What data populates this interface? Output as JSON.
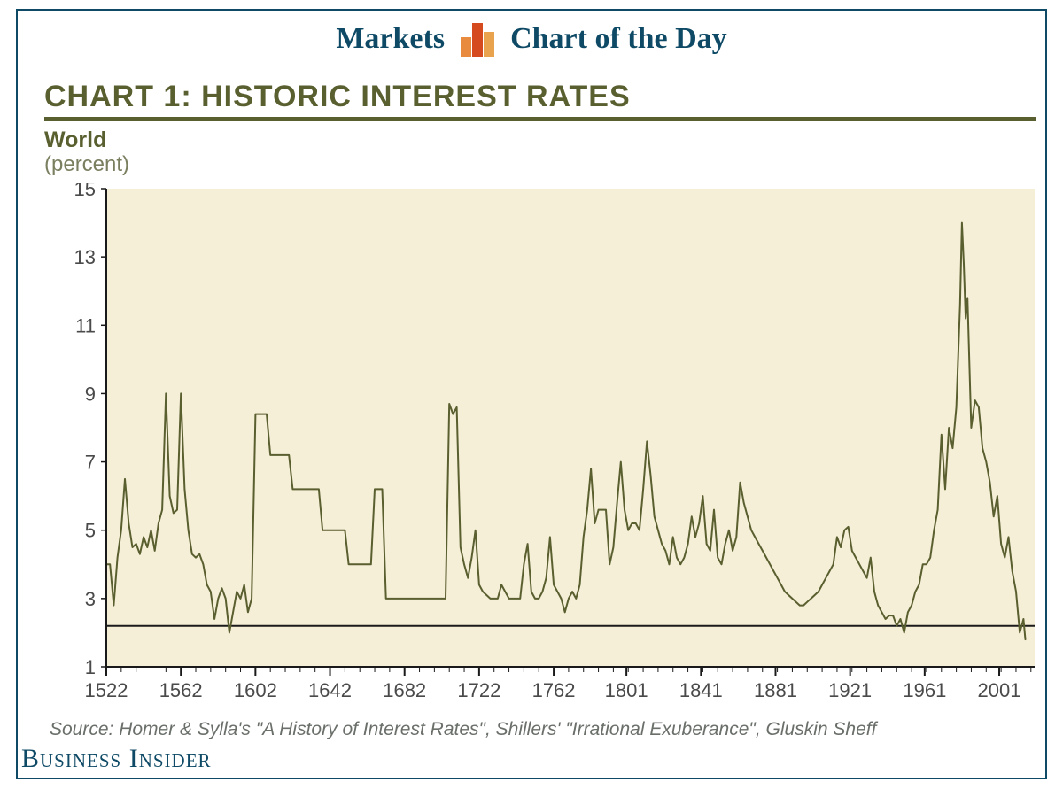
{
  "header": {
    "markets": "Markets",
    "cod": "Chart of the Day",
    "rule_color": "#e46f3a",
    "text_color": "#0e4a66",
    "icon_colors": [
      "#e88b3f",
      "#d64a1f",
      "#e9a24d"
    ]
  },
  "chart": {
    "type": "line",
    "title": "CHART 1: HISTORIC INTEREST RATES",
    "title_color": "#5a5f2f",
    "title_fontsize": 34,
    "subtitle1": "World",
    "subtitle2": "(percent)",
    "subtitle_color": "#5a5f2f",
    "subtitle2_color": "#7a7f60",
    "plot": {
      "bg_color": "#f6efd8",
      "axis_color": "#1a1a1a",
      "line_color": "#5a5f2f",
      "line_width": 2,
      "ref_line_y": 2.2,
      "ref_line_color": "#1a1a1a",
      "ref_line_width": 2,
      "xlim": [
        1522,
        2020
      ],
      "ylim": [
        1,
        15
      ],
      "yticks": [
        1,
        3,
        5,
        7,
        9,
        11,
        13,
        15
      ],
      "xticks": [
        1522,
        1562,
        1602,
        1642,
        1682,
        1722,
        1762,
        1801,
        1841,
        1881,
        1921,
        1961,
        2001
      ],
      "tick_fontsize": 22,
      "tick_color": "#4a4a4a",
      "minor_xtick_step": 8,
      "series": [
        [
          1522,
          4.0
        ],
        [
          1524,
          4.0
        ],
        [
          1526,
          2.8
        ],
        [
          1528,
          4.2
        ],
        [
          1530,
          5.0
        ],
        [
          1532,
          6.5
        ],
        [
          1534,
          5.2
        ],
        [
          1536,
          4.5
        ],
        [
          1538,
          4.6
        ],
        [
          1540,
          4.3
        ],
        [
          1542,
          4.8
        ],
        [
          1544,
          4.5
        ],
        [
          1546,
          5.0
        ],
        [
          1548,
          4.4
        ],
        [
          1550,
          5.2
        ],
        [
          1552,
          5.6
        ],
        [
          1554,
          9.0
        ],
        [
          1556,
          6.0
        ],
        [
          1558,
          5.5
        ],
        [
          1560,
          5.6
        ],
        [
          1562,
          9.0
        ],
        [
          1564,
          6.2
        ],
        [
          1566,
          5.0
        ],
        [
          1568,
          4.3
        ],
        [
          1570,
          4.2
        ],
        [
          1572,
          4.3
        ],
        [
          1574,
          4.0
        ],
        [
          1576,
          3.4
        ],
        [
          1578,
          3.2
        ],
        [
          1580,
          2.4
        ],
        [
          1582,
          3.0
        ],
        [
          1584,
          3.3
        ],
        [
          1586,
          3.0
        ],
        [
          1588,
          2.0
        ],
        [
          1590,
          2.6
        ],
        [
          1592,
          3.2
        ],
        [
          1594,
          3.0
        ],
        [
          1596,
          3.4
        ],
        [
          1598,
          2.6
        ],
        [
          1600,
          3.0
        ],
        [
          1602,
          8.4
        ],
        [
          1604,
          8.4
        ],
        [
          1606,
          8.4
        ],
        [
          1608,
          8.4
        ],
        [
          1610,
          7.2
        ],
        [
          1612,
          7.2
        ],
        [
          1614,
          7.2
        ],
        [
          1616,
          7.2
        ],
        [
          1618,
          7.2
        ],
        [
          1620,
          7.2
        ],
        [
          1622,
          6.2
        ],
        [
          1624,
          6.2
        ],
        [
          1626,
          6.2
        ],
        [
          1628,
          6.2
        ],
        [
          1630,
          6.2
        ],
        [
          1632,
          6.2
        ],
        [
          1634,
          6.2
        ],
        [
          1636,
          6.2
        ],
        [
          1638,
          5.0
        ],
        [
          1640,
          5.0
        ],
        [
          1642,
          5.0
        ],
        [
          1644,
          5.0
        ],
        [
          1646,
          5.0
        ],
        [
          1648,
          5.0
        ],
        [
          1650,
          5.0
        ],
        [
          1652,
          4.0
        ],
        [
          1654,
          4.0
        ],
        [
          1656,
          4.0
        ],
        [
          1658,
          4.0
        ],
        [
          1660,
          4.0
        ],
        [
          1662,
          4.0
        ],
        [
          1664,
          4.0
        ],
        [
          1666,
          6.2
        ],
        [
          1668,
          6.2
        ],
        [
          1670,
          6.2
        ],
        [
          1672,
          3.0
        ],
        [
          1674,
          3.0
        ],
        [
          1676,
          3.0
        ],
        [
          1678,
          3.0
        ],
        [
          1680,
          3.0
        ],
        [
          1682,
          3.0
        ],
        [
          1684,
          3.0
        ],
        [
          1686,
          3.0
        ],
        [
          1688,
          3.0
        ],
        [
          1690,
          3.0
        ],
        [
          1692,
          3.0
        ],
        [
          1694,
          3.0
        ],
        [
          1696,
          3.0
        ],
        [
          1698,
          3.0
        ],
        [
          1700,
          3.0
        ],
        [
          1702,
          3.0
        ],
        [
          1704,
          3.0
        ],
        [
          1706,
          8.7
        ],
        [
          1708,
          8.4
        ],
        [
          1710,
          8.6
        ],
        [
          1712,
          4.5
        ],
        [
          1714,
          4.0
        ],
        [
          1716,
          3.6
        ],
        [
          1718,
          4.2
        ],
        [
          1720,
          5.0
        ],
        [
          1722,
          3.4
        ],
        [
          1724,
          3.2
        ],
        [
          1726,
          3.1
        ],
        [
          1728,
          3.0
        ],
        [
          1730,
          3.0
        ],
        [
          1732,
          3.0
        ],
        [
          1734,
          3.4
        ],
        [
          1736,
          3.2
        ],
        [
          1738,
          3.0
        ],
        [
          1740,
          3.0
        ],
        [
          1742,
          3.0
        ],
        [
          1744,
          3.0
        ],
        [
          1746,
          4.0
        ],
        [
          1748,
          4.6
        ],
        [
          1750,
          3.2
        ],
        [
          1752,
          3.0
        ],
        [
          1754,
          3.0
        ],
        [
          1756,
          3.2
        ],
        [
          1758,
          3.6
        ],
        [
          1760,
          4.8
        ],
        [
          1762,
          3.4
        ],
        [
          1764,
          3.2
        ],
        [
          1766,
          3.0
        ],
        [
          1768,
          2.6
        ],
        [
          1770,
          3.0
        ],
        [
          1772,
          3.2
        ],
        [
          1774,
          3.0
        ],
        [
          1776,
          3.4
        ],
        [
          1778,
          4.8
        ],
        [
          1780,
          5.6
        ],
        [
          1782,
          6.8
        ],
        [
          1784,
          5.2
        ],
        [
          1786,
          5.6
        ],
        [
          1788,
          5.6
        ],
        [
          1790,
          5.6
        ],
        [
          1792,
          4.0
        ],
        [
          1794,
          4.5
        ],
        [
          1796,
          5.8
        ],
        [
          1798,
          7.0
        ],
        [
          1800,
          5.6
        ],
        [
          1802,
          5.0
        ],
        [
          1804,
          5.2
        ],
        [
          1806,
          5.2
        ],
        [
          1808,
          5.0
        ],
        [
          1810,
          6.2
        ],
        [
          1812,
          7.6
        ],
        [
          1814,
          6.6
        ],
        [
          1816,
          5.4
        ],
        [
          1818,
          5.0
        ],
        [
          1820,
          4.6
        ],
        [
          1822,
          4.4
        ],
        [
          1824,
          4.0
        ],
        [
          1826,
          4.8
        ],
        [
          1828,
          4.2
        ],
        [
          1830,
          4.0
        ],
        [
          1832,
          4.2
        ],
        [
          1834,
          4.6
        ],
        [
          1836,
          5.4
        ],
        [
          1838,
          4.8
        ],
        [
          1840,
          5.2
        ],
        [
          1842,
          6.0
        ],
        [
          1844,
          4.6
        ],
        [
          1846,
          4.4
        ],
        [
          1848,
          5.6
        ],
        [
          1850,
          4.2
        ],
        [
          1852,
          4.0
        ],
        [
          1854,
          4.6
        ],
        [
          1856,
          5.0
        ],
        [
          1858,
          4.4
        ],
        [
          1860,
          4.8
        ],
        [
          1862,
          6.4
        ],
        [
          1864,
          5.8
        ],
        [
          1866,
          5.4
        ],
        [
          1868,
          5.0
        ],
        [
          1870,
          4.8
        ],
        [
          1872,
          4.6
        ],
        [
          1874,
          4.4
        ],
        [
          1876,
          4.2
        ],
        [
          1878,
          4.0
        ],
        [
          1880,
          3.8
        ],
        [
          1882,
          3.6
        ],
        [
          1884,
          3.4
        ],
        [
          1886,
          3.2
        ],
        [
          1888,
          3.1
        ],
        [
          1890,
          3.0
        ],
        [
          1892,
          2.9
        ],
        [
          1894,
          2.8
        ],
        [
          1896,
          2.8
        ],
        [
          1898,
          2.9
        ],
        [
          1900,
          3.0
        ],
        [
          1902,
          3.1
        ],
        [
          1904,
          3.2
        ],
        [
          1906,
          3.4
        ],
        [
          1908,
          3.6
        ],
        [
          1910,
          3.8
        ],
        [
          1912,
          4.0
        ],
        [
          1914,
          4.8
        ],
        [
          1916,
          4.5
        ],
        [
          1918,
          5.0
        ],
        [
          1920,
          5.1
        ],
        [
          1922,
          4.4
        ],
        [
          1924,
          4.2
        ],
        [
          1926,
          4.0
        ],
        [
          1928,
          3.8
        ],
        [
          1930,
          3.6
        ],
        [
          1932,
          4.2
        ],
        [
          1934,
          3.2
        ],
        [
          1936,
          2.8
        ],
        [
          1938,
          2.6
        ],
        [
          1940,
          2.4
        ],
        [
          1942,
          2.5
        ],
        [
          1944,
          2.5
        ],
        [
          1946,
          2.2
        ],
        [
          1948,
          2.4
        ],
        [
          1950,
          2.0
        ],
        [
          1952,
          2.6
        ],
        [
          1954,
          2.8
        ],
        [
          1956,
          3.2
        ],
        [
          1958,
          3.4
        ],
        [
          1960,
          4.0
        ],
        [
          1962,
          4.0
        ],
        [
          1964,
          4.2
        ],
        [
          1966,
          5.0
        ],
        [
          1968,
          5.6
        ],
        [
          1970,
          7.8
        ],
        [
          1972,
          6.2
        ],
        [
          1974,
          8.0
        ],
        [
          1976,
          7.4
        ],
        [
          1978,
          8.6
        ],
        [
          1980,
          11.6
        ],
        [
          1981,
          14.0
        ],
        [
          1982,
          12.8
        ],
        [
          1983,
          11.2
        ],
        [
          1984,
          11.8
        ],
        [
          1986,
          8.0
        ],
        [
          1988,
          8.8
        ],
        [
          1990,
          8.6
        ],
        [
          1992,
          7.4
        ],
        [
          1994,
          7.0
        ],
        [
          1996,
          6.4
        ],
        [
          1998,
          5.4
        ],
        [
          2000,
          6.0
        ],
        [
          2002,
          4.6
        ],
        [
          2004,
          4.2
        ],
        [
          2006,
          4.8
        ],
        [
          2008,
          3.8
        ],
        [
          2010,
          3.2
        ],
        [
          2012,
          2.0
        ],
        [
          2014,
          2.4
        ],
        [
          2015,
          1.8
        ]
      ]
    }
  },
  "source": "Source: Homer & Sylla's \"A History of Interest Rates\", Shillers' \"Irrational Exuberance\", Gluskin Sheff",
  "brand": "Business Insider",
  "frame_border_color": "#0e4a66"
}
